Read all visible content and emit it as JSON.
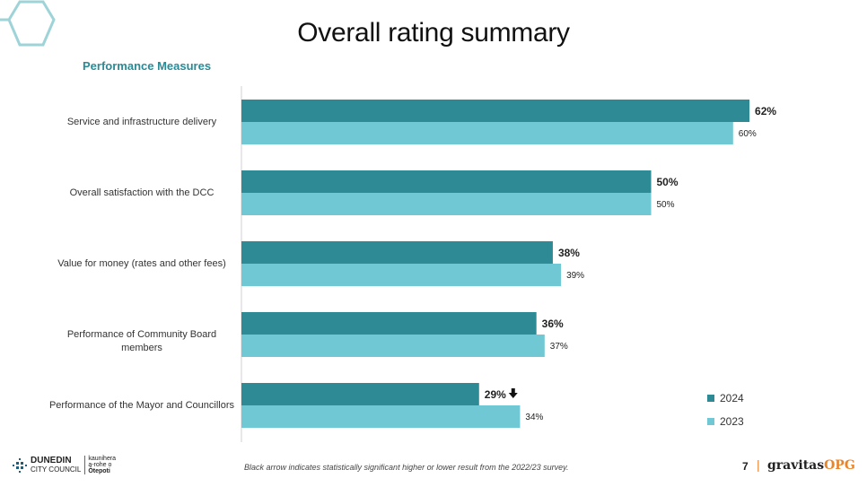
{
  "title": "Overall rating summary",
  "subtitle": "Performance Measures",
  "footnote": "Black arrow indicates statistically significant higher or lower result from the 2022/23 survey.",
  "page_number": "7",
  "separator": "|",
  "brand": {
    "part1": "gravitas",
    "part2": "OPG"
  },
  "logo": {
    "line1": "DUNEDIN",
    "line2": "CITY COUNCIL",
    "maori1": "kaunihera",
    "maori2": "a-rohe o",
    "maori3": "Ōtepoti"
  },
  "colors": {
    "series2024": "#2e8a94",
    "series2023": "#6fc8d3",
    "accent": "#2a8a95"
  },
  "chart_data": {
    "type": "bar",
    "orientation": "horizontal",
    "categories": [
      "Service and infrastructure delivery",
      "Overall satisfaction with the DCC",
      "Value for money (rates and other fees)",
      "Performance of Community Board members",
      "Performance of the Mayor and Councillors"
    ],
    "series": [
      {
        "name": "2024",
        "values": [
          62,
          50,
          38,
          36,
          29
        ],
        "labels": [
          "62%",
          "50%",
          "38%",
          "36%",
          "29%"
        ]
      },
      {
        "name": "2023",
        "values": [
          60,
          50,
          39,
          37,
          34
        ],
        "labels": [
          "60%",
          "50%",
          "39%",
          "37%",
          "34%"
        ]
      }
    ],
    "significance": [
      null,
      null,
      null,
      null,
      "down"
    ],
    "xlim": [
      0,
      65
    ],
    "legend_position": "bottom-right",
    "grid": false
  }
}
